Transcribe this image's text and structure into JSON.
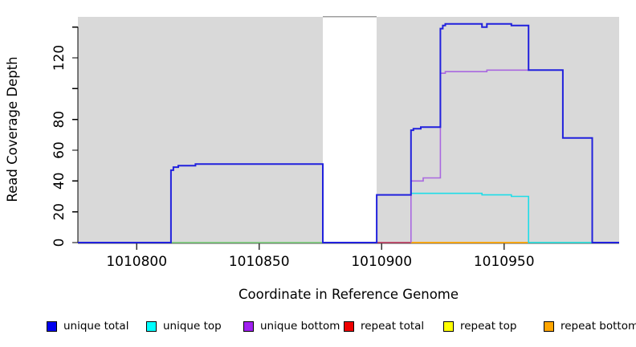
{
  "chart_data": {
    "type": "line",
    "subtype": "step-coverage",
    "title": "",
    "xlabel": "Coordinate in Reference Genome",
    "ylabel": "Read Coverage Depth",
    "xlim": [
      1010776,
      1010997
    ],
    "ylim": [
      0,
      146.6
    ],
    "xticks": [
      1010800,
      1010850,
      1010900,
      1010950
    ],
    "yticks": [
      0,
      20,
      40,
      60,
      80,
      100,
      120,
      140
    ],
    "ytick_labels_shown": [
      0,
      20,
      40,
      60,
      80,
      120
    ],
    "grid": false,
    "legend_position": "bottom",
    "panel_background": "#ffffff",
    "region_fill": "#d9d9d9",
    "gap_strip_color": "#9e9e9e",
    "background_regions": [
      {
        "x1": 1010776,
        "x2": 1010876,
        "kind": "shaded"
      },
      {
        "x1": 1010876,
        "x2": 1010898,
        "kind": "gap-white"
      },
      {
        "x1": 1010898,
        "x2": 1010997,
        "kind": "shaded"
      }
    ],
    "series": [
      {
        "name": "repeat total baseline",
        "color": "#c03158",
        "width": 1.6,
        "points": [
          [
            1010898,
            0
          ],
          [
            1010912,
            0
          ]
        ]
      },
      {
        "name": "repeat bottom baseline",
        "color": "#ffa500",
        "width": 1.8,
        "points": [
          [
            1010912,
            0
          ],
          [
            1010960,
            0
          ]
        ]
      },
      {
        "name": "overlapped-at-zero blend left",
        "color": "#76cf76",
        "width": 1.6,
        "points": [
          [
            1010814,
            0
          ],
          [
            1010876,
            0
          ]
        ]
      },
      {
        "name": "overlapped-at-zero blend right",
        "color": "#76cf76",
        "width": 1.6,
        "points": [
          [
            1010960,
            0
          ],
          [
            1010986,
            0
          ]
        ]
      },
      {
        "name": "unique top",
        "color": "#1fdde8",
        "width": 1.6,
        "points": [
          [
            1010912,
            32
          ],
          [
            1010941,
            32
          ],
          [
            1010941,
            31
          ],
          [
            1010953,
            31
          ],
          [
            1010953,
            30
          ],
          [
            1010960,
            30
          ],
          [
            1010960,
            0
          ],
          [
            1010986,
            0
          ]
        ]
      },
      {
        "name": "unique bottom",
        "color": "#a968e0",
        "width": 1.6,
        "points": [
          [
            1010912,
            0
          ],
          [
            1010912,
            40
          ],
          [
            1010917,
            40
          ],
          [
            1010917,
            42
          ],
          [
            1010924,
            42
          ],
          [
            1010924,
            110
          ],
          [
            1010926,
            110
          ],
          [
            1010926,
            111
          ],
          [
            1010943,
            111
          ],
          [
            1010943,
            112
          ],
          [
            1010960,
            112
          ]
        ]
      },
      {
        "name": "unique total",
        "color": "#2121dd",
        "width": 2,
        "points": [
          [
            1010776,
            0
          ],
          [
            1010814,
            0
          ],
          [
            1010814,
            47
          ],
          [
            1010815,
            47
          ],
          [
            1010815,
            49
          ],
          [
            1010817,
            49
          ],
          [
            1010817,
            50
          ],
          [
            1010824,
            50
          ],
          [
            1010824,
            51
          ],
          [
            1010876,
            51
          ],
          [
            1010876,
            0
          ],
          [
            1010898,
            0
          ],
          [
            1010898,
            31
          ],
          [
            1010912,
            31
          ],
          [
            1010912,
            73
          ],
          [
            1010913,
            73
          ],
          [
            1010913,
            74
          ],
          [
            1010916,
            74
          ],
          [
            1010916,
            75
          ],
          [
            1010924,
            75
          ],
          [
            1010924,
            139
          ],
          [
            1010925,
            139
          ],
          [
            1010925,
            141
          ],
          [
            1010926,
            141
          ],
          [
            1010926,
            142
          ],
          [
            1010941,
            142
          ],
          [
            1010941,
            140
          ],
          [
            1010943,
            140
          ],
          [
            1010943,
            142
          ],
          [
            1010953,
            142
          ],
          [
            1010953,
            141
          ],
          [
            1010960,
            141
          ],
          [
            1010960,
            112
          ],
          [
            1010974,
            112
          ],
          [
            1010974,
            68
          ],
          [
            1010986,
            68
          ],
          [
            1010986,
            0
          ],
          [
            1010997,
            0
          ]
        ]
      }
    ],
    "legend": [
      {
        "label": "unique total",
        "color": "#0000ee"
      },
      {
        "label": "unique top",
        "color": "#00ffff"
      },
      {
        "label": "unique bottom",
        "color": "#a020f0"
      },
      {
        "label": "repeat total",
        "color": "#ee0000"
      },
      {
        "label": "repeat top",
        "color": "#ffff00"
      },
      {
        "label": "repeat bottom",
        "color": "#ffa500"
      }
    ]
  }
}
